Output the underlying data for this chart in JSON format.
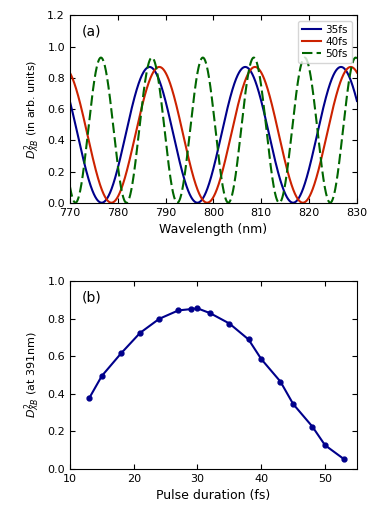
{
  "panel_a": {
    "wavelength_range": [
      770,
      830
    ],
    "label_35fs": "35fs",
    "label_40fs": "40fs",
    "label_50fs": "50fs",
    "color_35fs": "#00008B",
    "color_40fs": "#CC2200",
    "color_50fs": "#006600",
    "xlim": [
      770,
      830
    ],
    "ylim": [
      0,
      1.2
    ],
    "xlabel": "Wavelength (nm)",
    "ylabel": "D²_XB (in arb. units)",
    "panel_label": "(a)",
    "xticks": [
      770,
      780,
      790,
      800,
      810,
      820,
      830
    ],
    "yticks": [
      0.0,
      0.2,
      0.4,
      0.6,
      0.8,
      1.0,
      1.2
    ],
    "freq_35": 0.157,
    "freq_40": 0.157,
    "freq_50": 0.295,
    "phase_35": 2.1,
    "phase_40": 1.78,
    "phase_50": 2.8,
    "amp_35": 0.87,
    "amp_40": 0.87,
    "amp_50": 0.93
  },
  "panel_b": {
    "pulse_durations": [
      13,
      15,
      18,
      21,
      24,
      27,
      29,
      30,
      32,
      35,
      38,
      40,
      43,
      45,
      48,
      50,
      53
    ],
    "values": [
      0.375,
      0.495,
      0.615,
      0.725,
      0.8,
      0.845,
      0.852,
      0.856,
      0.83,
      0.775,
      0.69,
      0.585,
      0.465,
      0.345,
      0.225,
      0.125,
      0.05
    ],
    "color": "#00008B",
    "xlim": [
      10,
      55
    ],
    "ylim": [
      0,
      1.0
    ],
    "xlabel": "Pulse duration (fs)",
    "ylabel": "D²_XB (at 391nm)",
    "panel_label": "(b)",
    "xticks": [
      10,
      20,
      30,
      40,
      50
    ],
    "yticks": [
      0.0,
      0.2,
      0.4,
      0.6,
      0.8,
      1.0
    ]
  }
}
